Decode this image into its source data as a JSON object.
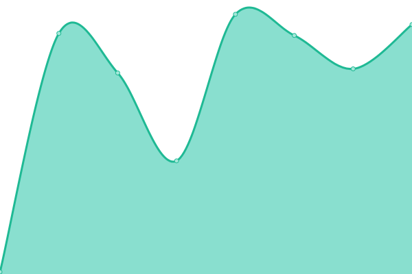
{
  "chart_data": {
    "type": "area",
    "x": [
      0,
      1,
      2,
      3,
      4,
      5,
      6,
      7
    ],
    "series": [
      {
        "values": [
          3,
          353,
          295,
          166,
          381,
          350,
          301,
          366
        ]
      }
    ],
    "xlim": [
      0,
      7
    ],
    "ylim": [
      0,
      400
    ],
    "grid": false,
    "axes_visible": false,
    "smooth": true,
    "colors": {
      "fill": "#89dfcf",
      "line": "#1fb994",
      "point_fill": "#a6e8da"
    }
  }
}
